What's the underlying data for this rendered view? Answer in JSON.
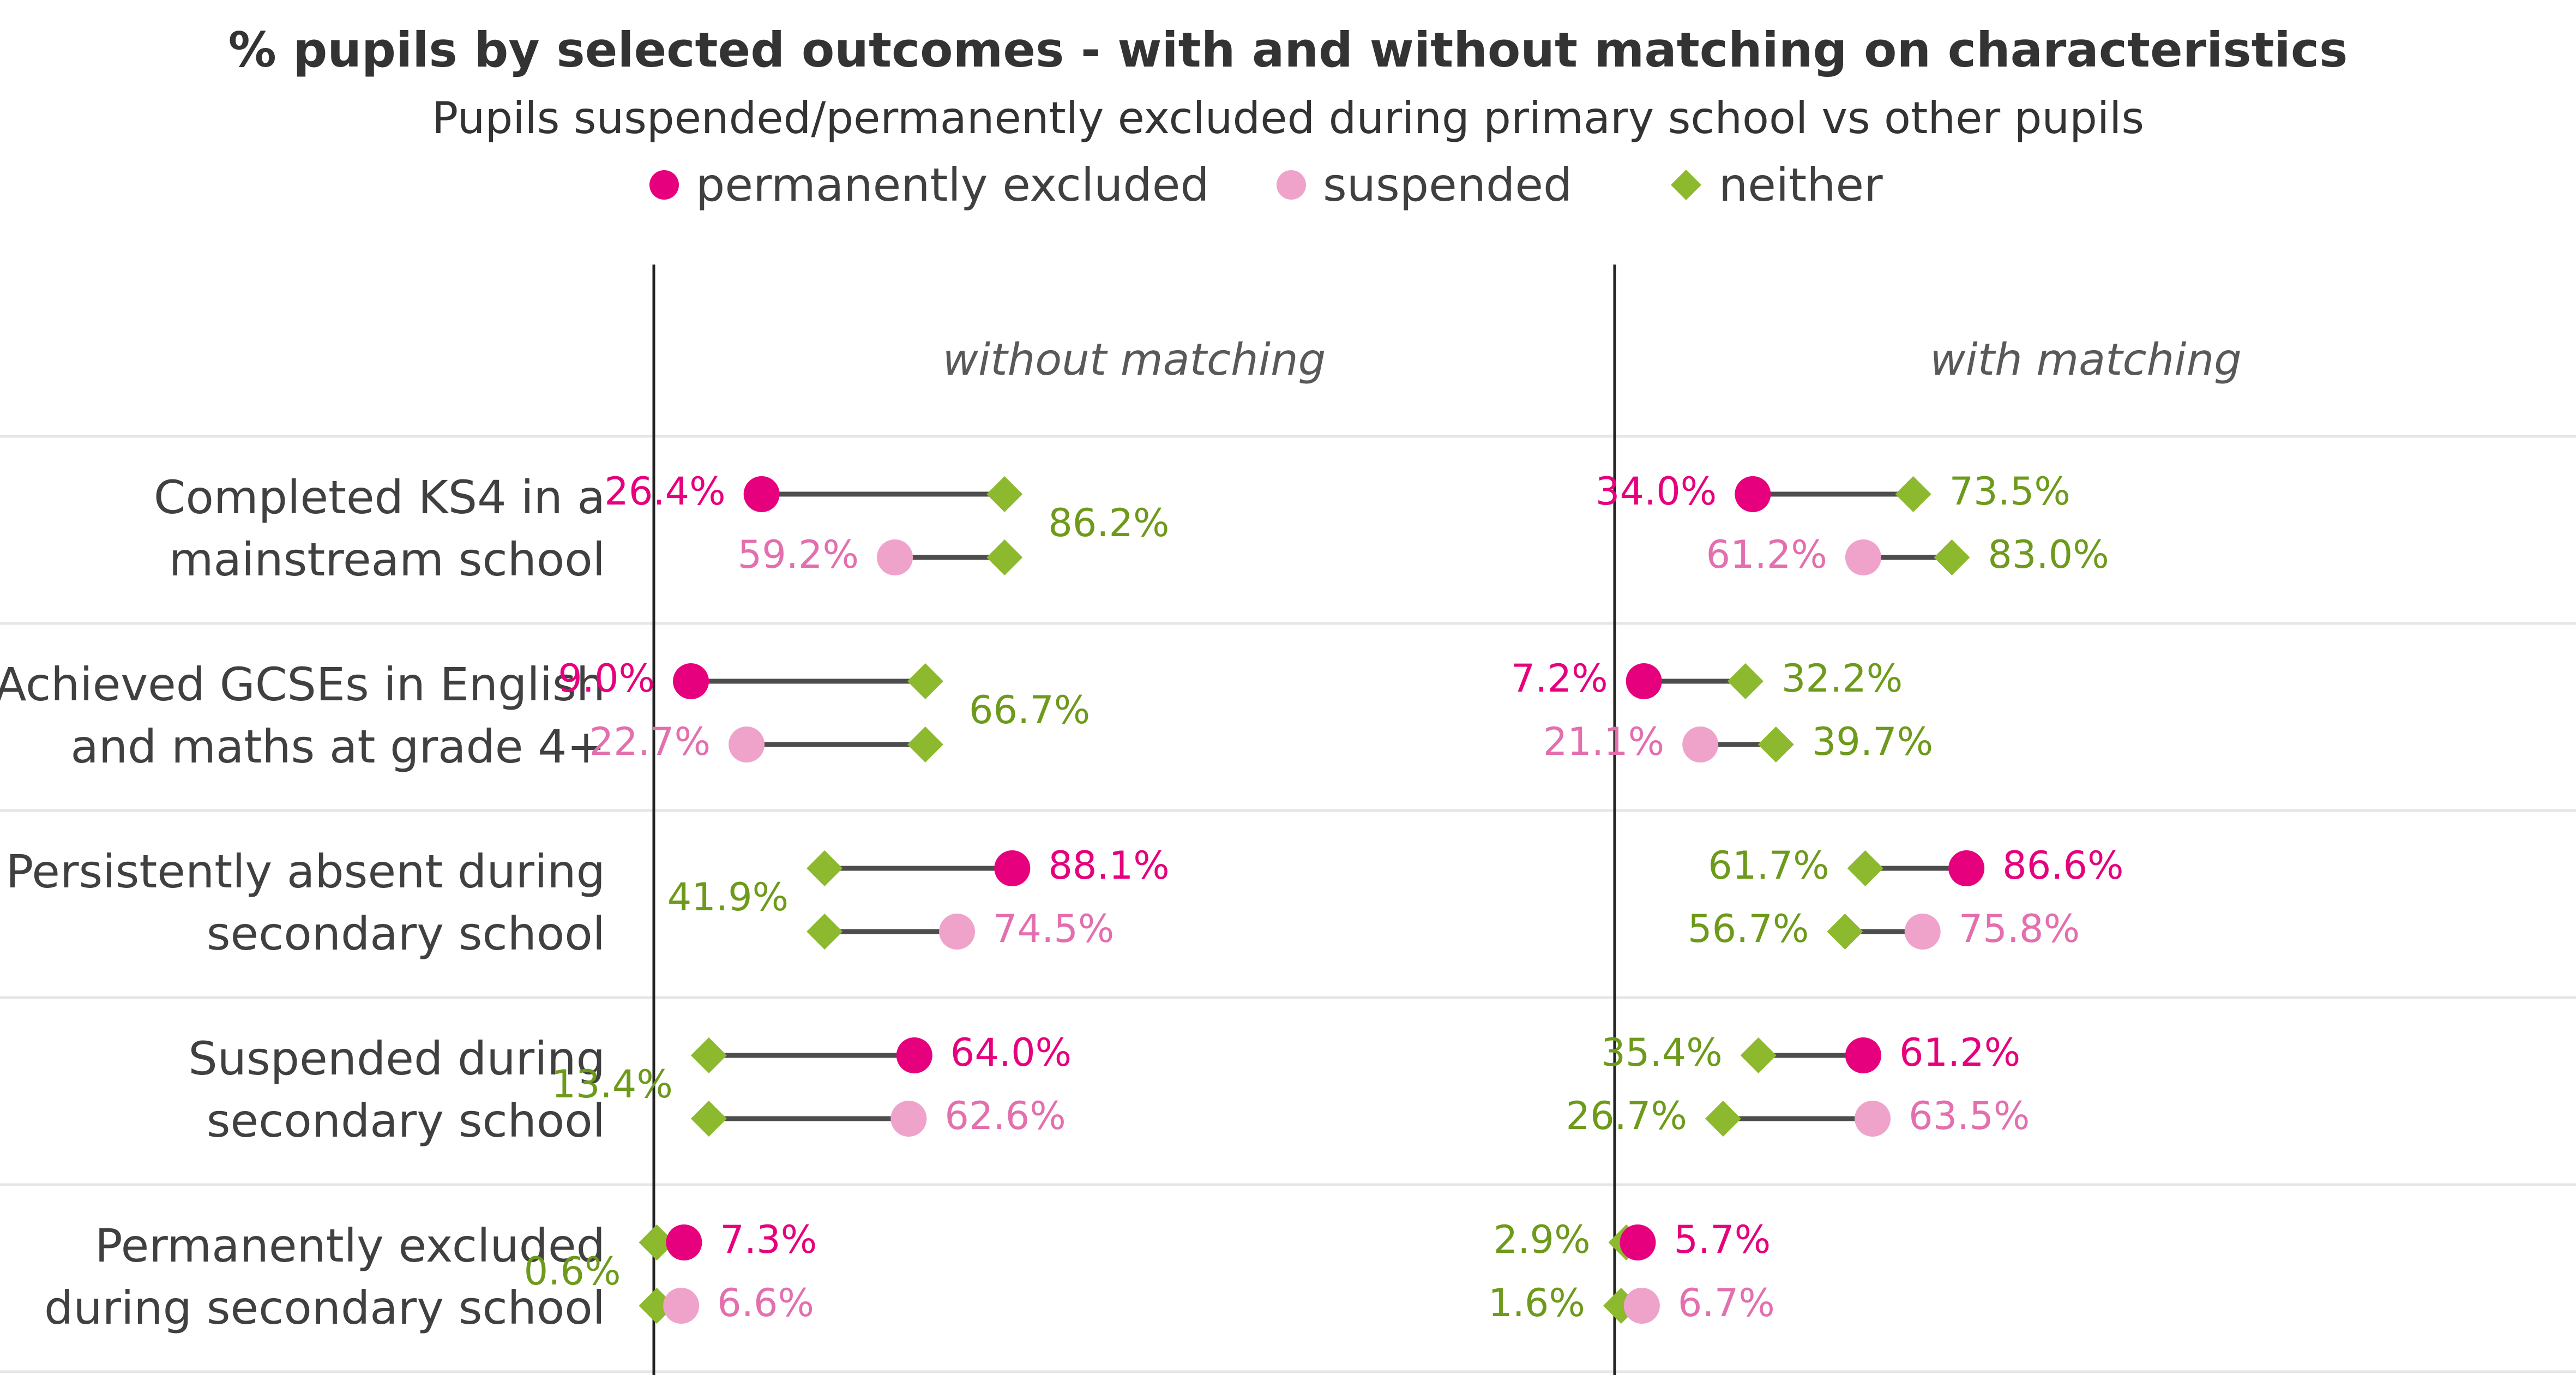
{
  "chart_data": {
    "type": "dumbbell",
    "title": "% pupils by selected outcomes - with and without matching on characteristics",
    "subtitle": "Pupils suspended/permanently excluded during primary school vs other pupils",
    "legend": [
      {
        "key": "permanently_excluded",
        "label": "permanently excluded",
        "color": "#E6007E",
        "marker": "circle"
      },
      {
        "key": "suspended",
        "label": "suspended",
        "color": "#EFA3CB",
        "marker": "circle"
      },
      {
        "key": "neither",
        "label": "neither",
        "color": "#8DB92E",
        "marker": "diamond"
      }
    ],
    "panels": [
      "without matching",
      "with matching"
    ],
    "x_range": [
      0,
      100
    ],
    "categories": [
      {
        "label": [
          "Completed KS4 in a",
          "mainstream school"
        ],
        "without": {
          "permanently_excluded": 26.4,
          "suspended": 59.2,
          "neither": 86.2
        },
        "with": {
          "pe_pair": [
            34.0,
            73.5
          ],
          "s_pair": [
            61.2,
            83.0
          ]
        }
      },
      {
        "label": [
          "Achieved GCSEs in English",
          "and maths at grade 4+"
        ],
        "without": {
          "permanently_excluded": 9.0,
          "suspended": 22.7,
          "neither": 66.7
        },
        "with": {
          "pe_pair": [
            7.2,
            32.2
          ],
          "s_pair": [
            21.1,
            39.7
          ]
        }
      },
      {
        "label": [
          "Persistently absent during",
          "secondary school"
        ],
        "without": {
          "permanently_excluded": 88.1,
          "suspended": 74.5,
          "neither": 41.9
        },
        "with": {
          "pe_pair": [
            86.6,
            61.7
          ],
          "s_pair": [
            75.8,
            56.7
          ]
        }
      },
      {
        "label": [
          "Suspended during",
          "secondary school"
        ],
        "without": {
          "permanently_excluded": 64.0,
          "suspended": 62.6,
          "neither": 13.4
        },
        "with": {
          "pe_pair": [
            61.2,
            35.4
          ],
          "s_pair": [
            63.5,
            26.7
          ]
        }
      },
      {
        "label": [
          "Permanently excluded",
          "during secondary school"
        ],
        "without": {
          "permanently_excluded": 7.3,
          "suspended": 6.6,
          "neither": 0.6
        },
        "with": {
          "pe_pair": [
            5.7,
            2.9
          ],
          "s_pair": [
            6.7,
            1.6
          ]
        }
      }
    ]
  }
}
